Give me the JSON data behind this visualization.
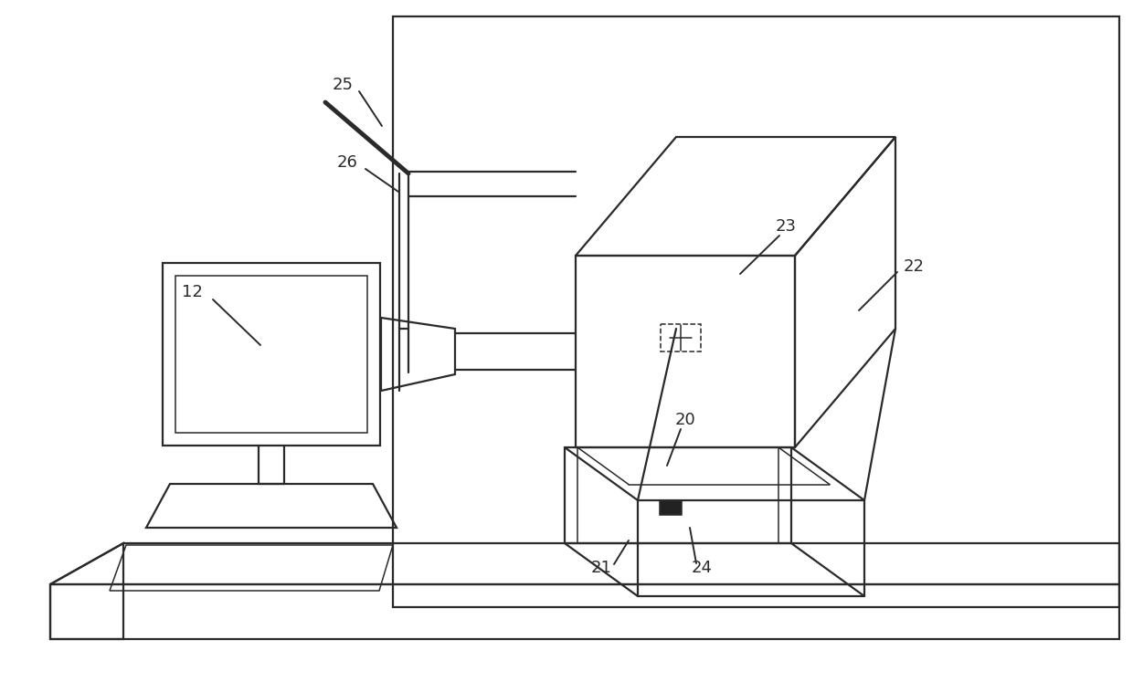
{
  "bg_color": "#ffffff",
  "line_color": "#2a2a2a",
  "line_width": 1.6,
  "thin_lw": 1.1,
  "fig_width": 12.4,
  "fig_height": 7.47,
  "dpi": 100,
  "label_fontsize": 13,
  "note_color": "#2a2a2a"
}
